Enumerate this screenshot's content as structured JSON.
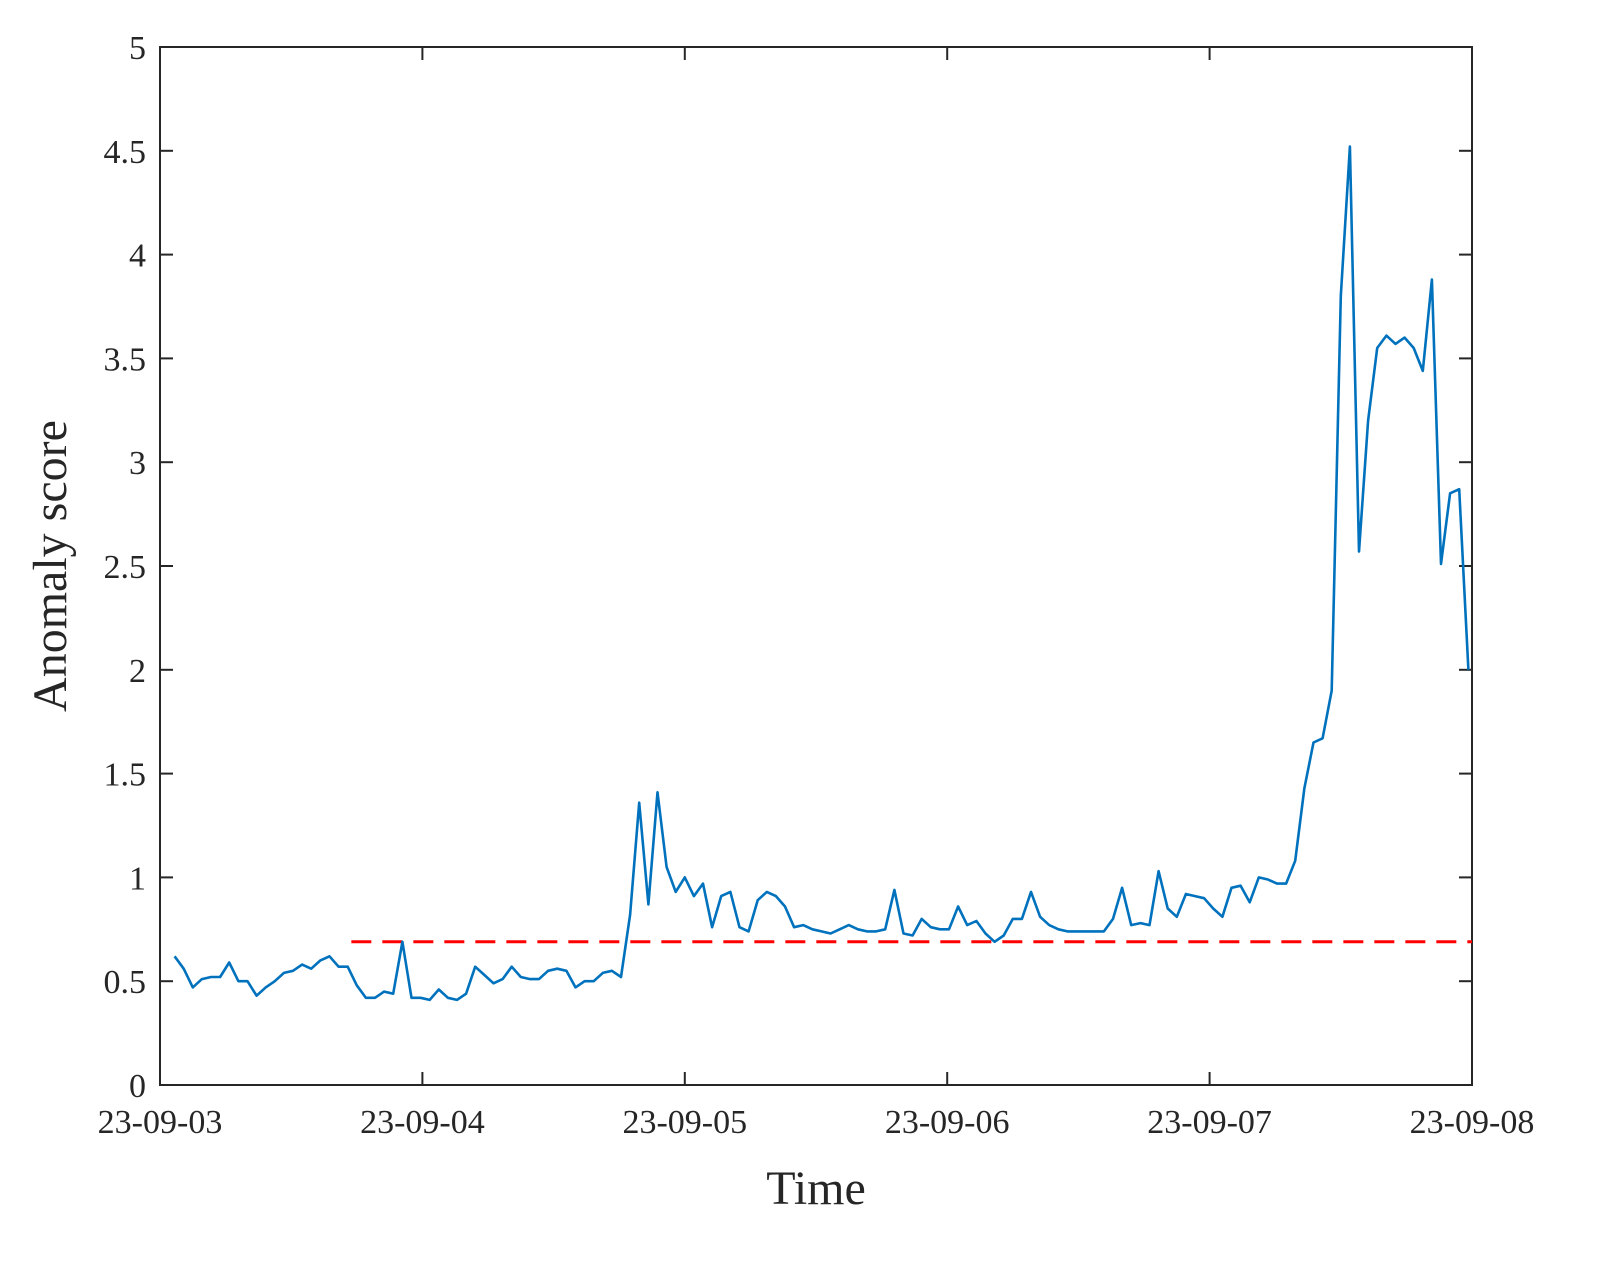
{
  "chart_data": {
    "type": "line",
    "xlabel": "Time",
    "ylabel": "Anomaly score",
    "xlim": [
      0,
      7200
    ],
    "xticks": [
      {
        "value": 0,
        "label": "23-09-03"
      },
      {
        "value": 1440,
        "label": "23-09-04"
      },
      {
        "value": 2880,
        "label": "23-09-05"
      },
      {
        "value": 4320,
        "label": "23-09-06"
      },
      {
        "value": 5760,
        "label": "23-09-07"
      },
      {
        "value": 7200,
        "label": "23-09-08"
      }
    ],
    "ylim": [
      0,
      5
    ],
    "yticks": [
      0,
      0.5,
      1,
      1.5,
      2,
      2.5,
      3,
      3.5,
      4,
      4.5,
      5
    ],
    "grid": false,
    "series": [
      {
        "color": "#0072bd",
        "x": [
          80,
          130,
          180,
          230,
          280,
          330,
          380,
          430,
          480,
          530,
          580,
          630,
          680,
          730,
          780,
          830,
          880,
          930,
          980,
          1030,
          1080,
          1130,
          1180,
          1230,
          1280,
          1330,
          1380,
          1430,
          1480,
          1530,
          1580,
          1630,
          1680,
          1730,
          1780,
          1830,
          1880,
          1930,
          1980,
          2030,
          2080,
          2130,
          2180,
          2230,
          2280,
          2330,
          2380,
          2430,
          2480,
          2530,
          2580,
          2630,
          2680,
          2730,
          2780,
          2830,
          2880,
          2930,
          2980,
          3030,
          3080,
          3130,
          3180,
          3230,
          3280,
          3330,
          3380,
          3430,
          3480,
          3530,
          3580,
          3630,
          3680,
          3730,
          3780,
          3830,
          3880,
          3930,
          3980,
          4030,
          4080,
          4130,
          4180,
          4230,
          4280,
          4330,
          4380,
          4430,
          4480,
          4530,
          4580,
          4630,
          4680,
          4730,
          4780,
          4830,
          4880,
          4930,
          4980,
          5030,
          5080,
          5130,
          5180,
          5230,
          5280,
          5330,
          5380,
          5430,
          5480,
          5530,
          5580,
          5630,
          5680,
          5730,
          5780,
          5830,
          5880,
          5930,
          5980,
          6030,
          6080,
          6130,
          6180,
          6230,
          6280,
          6330,
          6380,
          6430,
          6480,
          6530,
          6580,
          6630,
          6680,
          6730,
          6780,
          6830,
          6880,
          6930,
          6980,
          7030,
          7080,
          7130,
          7180
        ],
        "values": [
          0.62,
          0.56,
          0.47,
          0.51,
          0.52,
          0.52,
          0.59,
          0.5,
          0.5,
          0.43,
          0.47,
          0.5,
          0.54,
          0.55,
          0.58,
          0.56,
          0.6,
          0.62,
          0.57,
          0.57,
          0.48,
          0.42,
          0.42,
          0.45,
          0.44,
          0.69,
          0.42,
          0.42,
          0.41,
          0.46,
          0.42,
          0.41,
          0.44,
          0.57,
          0.53,
          0.49,
          0.51,
          0.57,
          0.52,
          0.51,
          0.51,
          0.55,
          0.56,
          0.55,
          0.47,
          0.5,
          0.5,
          0.54,
          0.55,
          0.52,
          0.82,
          1.36,
          0.87,
          1.41,
          1.05,
          0.93,
          1.0,
          0.91,
          0.97,
          0.76,
          0.91,
          0.93,
          0.76,
          0.74,
          0.89,
          0.93,
          0.91,
          0.86,
          0.76,
          0.77,
          0.75,
          0.74,
          0.73,
          0.75,
          0.77,
          0.75,
          0.74,
          0.74,
          0.75,
          0.94,
          0.73,
          0.72,
          0.8,
          0.76,
          0.75,
          0.75,
          0.86,
          0.77,
          0.79,
          0.73,
          0.69,
          0.72,
          0.8,
          0.8,
          0.93,
          0.81,
          0.77,
          0.75,
          0.74,
          0.74,
          0.74,
          0.74,
          0.74,
          0.8,
          0.95,
          0.77,
          0.78,
          0.77,
          1.03,
          0.85,
          0.81,
          0.92,
          0.91,
          0.9,
          0.85,
          0.81,
          0.95,
          0.96,
          0.88,
          1.0,
          0.99,
          0.97,
          0.97,
          1.08,
          1.43,
          1.65,
          1.67,
          1.9,
          3.8,
          4.52,
          2.57,
          3.2,
          3.55,
          3.61,
          3.57,
          3.6,
          3.55,
          3.44,
          3.88,
          2.51,
          2.85,
          2.87,
          2.0
        ]
      }
    ],
    "threshold": {
      "y": 0.69,
      "x_start": 1050,
      "x_end": 7200,
      "color": "#ff0000",
      "dashed": true
    }
  }
}
